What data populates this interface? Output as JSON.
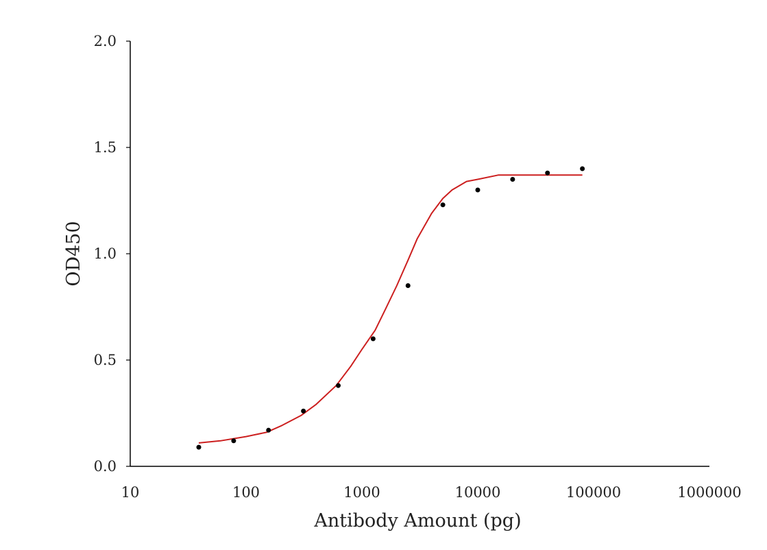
{
  "chart_data": {
    "type": "scatter",
    "title": "",
    "xlabel": "Antibody Amount (pg)",
    "ylabel": "OD450",
    "x_scale": "log",
    "xlim": [
      10,
      1000000
    ],
    "ylim": [
      0,
      2.0
    ],
    "x_ticks": [
      10,
      100,
      1000,
      10000,
      100000,
      1000000
    ],
    "x_tick_labels": [
      "10",
      "100",
      "1000",
      "10000",
      "100000",
      "1000000"
    ],
    "y_ticks": [
      0,
      0.5,
      1.0,
      1.5,
      2.0
    ],
    "y_tick_labels": [
      "0.0",
      "0.5",
      "1.0",
      "1.5",
      "2.0"
    ],
    "grid": false,
    "legend": "none",
    "series": [
      {
        "type": "scatter",
        "color": "#000000",
        "x": [
          39.06,
          78.13,
          156.25,
          312.5,
          625,
          1250,
          2500,
          5000,
          10000,
          20000,
          40000,
          80000
        ],
        "y": [
          0.09,
          0.12,
          0.17,
          0.26,
          0.38,
          0.6,
          0.85,
          1.23,
          1.3,
          1.35,
          1.38,
          1.4
        ]
      },
      {
        "type": "line",
        "color": "#cc1f1f",
        "fit": "4PL",
        "x": [
          39.06,
          60,
          100,
          150,
          200,
          300,
          400,
          600,
          800,
          1000,
          1300,
          1600,
          2000,
          2500,
          3000,
          4000,
          5000,
          6000,
          8000,
          10000,
          15000,
          20000,
          40000,
          80000
        ],
        "y": [
          0.11,
          0.12,
          0.14,
          0.16,
          0.19,
          0.24,
          0.29,
          0.38,
          0.47,
          0.55,
          0.64,
          0.74,
          0.85,
          0.97,
          1.07,
          1.19,
          1.26,
          1.3,
          1.34,
          1.35,
          1.37,
          1.37,
          1.37,
          1.37
        ]
      }
    ]
  }
}
